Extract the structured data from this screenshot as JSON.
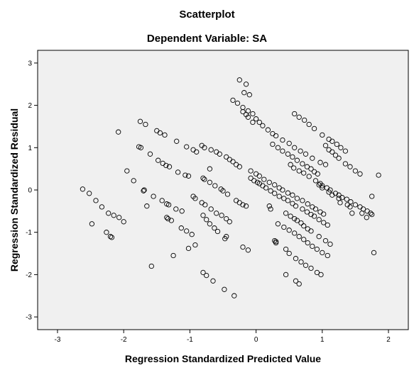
{
  "chart_data": {
    "type": "scatter",
    "title": "Scatterplot",
    "subtitle": "Dependent Variable: SA",
    "xlabel": "Regression Standardized Predicted Value",
    "ylabel": "Regression Standardized Residual",
    "xlim": [
      -3.3,
      2.3
    ],
    "ylim": [
      -3.3,
      3.3
    ],
    "xticks": [
      -3,
      -2,
      -1,
      0,
      1,
      2
    ],
    "yticks": [
      -3,
      -2,
      -1,
      0,
      1,
      2,
      3
    ],
    "grid": false,
    "plot_background": "#f0f0f0",
    "marker_color": "#000000",
    "series": [
      {
        "x": [
          -2.62,
          -2.52,
          -2.42,
          -2.33,
          -2.23,
          -2.15,
          -2.07,
          -2.0,
          -2.48,
          -2.26,
          -2.2,
          -2.18,
          -2.08,
          -1.75,
          -1.67,
          -1.5,
          -1.45,
          -1.38,
          -1.2,
          -1.05,
          -0.95,
          -0.9,
          -1.77,
          -1.74,
          -1.6,
          -1.48,
          -1.41,
          -1.36,
          -1.31,
          -1.18,
          -1.07,
          -1.02,
          -1.95,
          -1.85,
          -1.7,
          -1.69,
          -1.55,
          -1.42,
          -1.35,
          -1.32,
          -1.21,
          -1.12,
          -1.65,
          -1.35,
          -1.33,
          -1.28,
          -1.13,
          -1.05,
          -0.97,
          -1.58,
          -1.25,
          -1.02,
          -0.92,
          -0.82,
          -0.78,
          -0.68,
          -0.6,
          -0.55,
          -0.45,
          -0.4,
          -0.35,
          -0.3,
          -0.25,
          -0.7,
          -0.8,
          -0.78,
          -0.7,
          -0.62,
          -0.53,
          -0.5,
          -0.43,
          -0.3,
          -0.25,
          -0.2,
          -0.15,
          -0.95,
          -0.92,
          -0.82,
          -0.77,
          -0.68,
          -0.6,
          -0.52,
          -0.45,
          -0.4,
          -0.8,
          -0.75,
          -0.7,
          -0.63,
          -0.58,
          -0.45,
          -0.47,
          -0.2,
          -0.12,
          -0.8,
          -0.75,
          -0.65,
          -0.48,
          -0.33,
          -0.25,
          -0.15,
          -0.18,
          -0.1,
          -0.2,
          -0.15,
          -0.12,
          -0.05,
          -0.35,
          -0.28,
          -0.2,
          -0.12,
          -0.05,
          0.0,
          0.05,
          0.1,
          0.18,
          0.25,
          0.3,
          0.4,
          0.5,
          0.58,
          0.67,
          0.75,
          0.85,
          0.97,
          1.05,
          -0.08,
          -0.03,
          0.02,
          0.05,
          0.1,
          0.15,
          0.22,
          0.28,
          0.35,
          0.42,
          0.48,
          0.55,
          0.6,
          0.7,
          0.77,
          0.83,
          0.88,
          0.95,
          1.02,
          1.08,
          -0.08,
          0.0,
          0.05,
          0.12,
          0.2,
          0.28,
          0.35,
          0.4,
          0.48,
          0.55,
          0.62,
          0.7,
          0.78,
          0.85,
          0.9,
          0.97,
          1.02,
          0.25,
          0.33,
          0.4,
          0.48,
          0.55,
          0.62,
          0.7,
          0.77,
          0.83,
          0.88,
          0.93,
          0.2,
          0.22,
          0.45,
          0.52,
          0.58,
          0.62,
          0.68,
          0.72,
          0.78,
          0.83,
          0.95,
          1.05,
          1.12,
          0.33,
          0.42,
          0.5,
          0.58,
          0.65,
          0.72,
          0.78,
          0.85,
          0.92,
          1.0,
          1.08,
          0.52,
          0.57,
          0.65,
          0.72,
          0.8,
          0.9,
          0.97,
          1.0,
          1.07,
          1.12,
          1.2,
          1.25,
          1.3,
          1.37,
          1.43,
          1.5,
          1.57,
          1.62,
          1.68,
          1.73,
          1.75,
          0.58,
          0.65,
          0.73,
          0.8,
          0.88,
          1.0,
          1.1,
          1.15,
          1.22,
          1.28,
          1.35,
          0.28,
          0.3,
          0.45,
          0.5,
          0.6,
          0.68,
          0.75,
          0.83,
          0.92,
          0.98,
          1.05,
          1.1,
          1.15,
          1.2,
          1.25,
          1.35,
          1.42,
          1.5,
          1.57,
          0.95,
          1.0,
          1.1,
          1.15,
          1.25,
          1.38,
          1.42,
          1.6,
          1.67,
          1.85,
          1.27,
          1.45,
          1.78,
          0.45,
          0.6,
          0.65,
          1.75,
          0.3
        ],
        "y": [
          0.02,
          -0.08,
          -0.25,
          -0.4,
          -0.55,
          -0.6,
          -0.65,
          -0.75,
          -0.8,
          -1.0,
          -1.1,
          -1.12,
          1.37,
          1.62,
          1.55,
          1.4,
          1.35,
          1.3,
          1.15,
          1.02,
          0.95,
          0.9,
          1.02,
          1.0,
          0.85,
          0.7,
          0.63,
          0.58,
          0.55,
          0.42,
          0.35,
          0.33,
          0.45,
          0.22,
          -0.02,
          0.0,
          -0.15,
          -0.25,
          -0.33,
          -0.35,
          -0.45,
          -0.5,
          -0.38,
          -0.65,
          -0.68,
          -0.72,
          -0.9,
          -0.97,
          -1.05,
          -1.8,
          -1.55,
          -1.38,
          -1.3,
          1.05,
          1.0,
          0.95,
          0.9,
          0.85,
          0.78,
          0.72,
          0.67,
          0.6,
          0.55,
          0.5,
          0.28,
          0.25,
          0.18,
          0.1,
          0.02,
          -0.02,
          -0.1,
          -0.25,
          -0.3,
          -0.35,
          -0.38,
          -0.15,
          -0.2,
          -0.3,
          -0.35,
          -0.45,
          -0.55,
          -0.6,
          -0.68,
          -0.75,
          -0.6,
          -0.7,
          -0.8,
          -0.9,
          -0.98,
          -1.1,
          -1.15,
          -1.35,
          -1.42,
          -1.95,
          -2.02,
          -2.15,
          -2.35,
          -2.5,
          2.6,
          2.5,
          2.3,
          2.25,
          1.85,
          1.78,
          1.72,
          1.6,
          2.12,
          2.05,
          1.95,
          1.87,
          1.8,
          1.68,
          1.6,
          1.52,
          1.42,
          1.33,
          1.28,
          1.18,
          1.1,
          1.0,
          0.92,
          0.85,
          0.75,
          0.65,
          0.6,
          0.28,
          0.22,
          0.18,
          0.15,
          0.1,
          0.05,
          -0.02,
          -0.08,
          -0.15,
          -0.2,
          -0.25,
          -0.32,
          -0.38,
          -0.45,
          -0.52,
          -0.58,
          -0.62,
          -0.7,
          -0.77,
          -0.83,
          0.45,
          0.38,
          0.33,
          0.25,
          0.18,
          0.12,
          0.05,
          0.0,
          -0.07,
          -0.12,
          -0.2,
          -0.25,
          -0.33,
          -0.4,
          -0.45,
          -0.52,
          -0.57,
          1.08,
          1.0,
          0.92,
          0.85,
          0.78,
          0.7,
          0.62,
          0.55,
          0.5,
          0.43,
          0.38,
          -0.38,
          -0.45,
          -0.55,
          -0.62,
          -0.68,
          -0.72,
          -0.78,
          -0.85,
          -0.92,
          -0.97,
          -1.1,
          -1.2,
          -1.28,
          -0.8,
          -0.88,
          -0.95,
          -1.02,
          -1.1,
          -1.17,
          -1.25,
          -1.33,
          -1.4,
          -1.48,
          -1.55,
          0.6,
          0.52,
          0.45,
          0.4,
          0.32,
          0.22,
          0.15,
          0.1,
          0.05,
          0.0,
          -0.08,
          -0.12,
          -0.18,
          -0.22,
          -0.28,
          -0.35,
          -0.4,
          -0.45,
          -0.5,
          -0.55,
          -0.58,
          1.8,
          1.72,
          1.65,
          1.55,
          1.45,
          1.3,
          1.2,
          1.15,
          1.08,
          1.0,
          0.92,
          -1.2,
          -1.25,
          -1.4,
          -1.5,
          -1.62,
          -1.7,
          -1.78,
          -1.85,
          -1.95,
          -2.0,
          1.05,
          0.95,
          0.9,
          0.82,
          0.75,
          0.62,
          0.55,
          0.45,
          0.38,
          0.12,
          0.05,
          -0.05,
          -0.12,
          -0.2,
          -0.35,
          -0.4,
          -0.55,
          -0.65,
          0.35,
          -0.3,
          -0.55,
          -1.48,
          -2.0,
          -2.15,
          -2.22,
          -0.15,
          -1.22
        ]
      }
    ]
  }
}
